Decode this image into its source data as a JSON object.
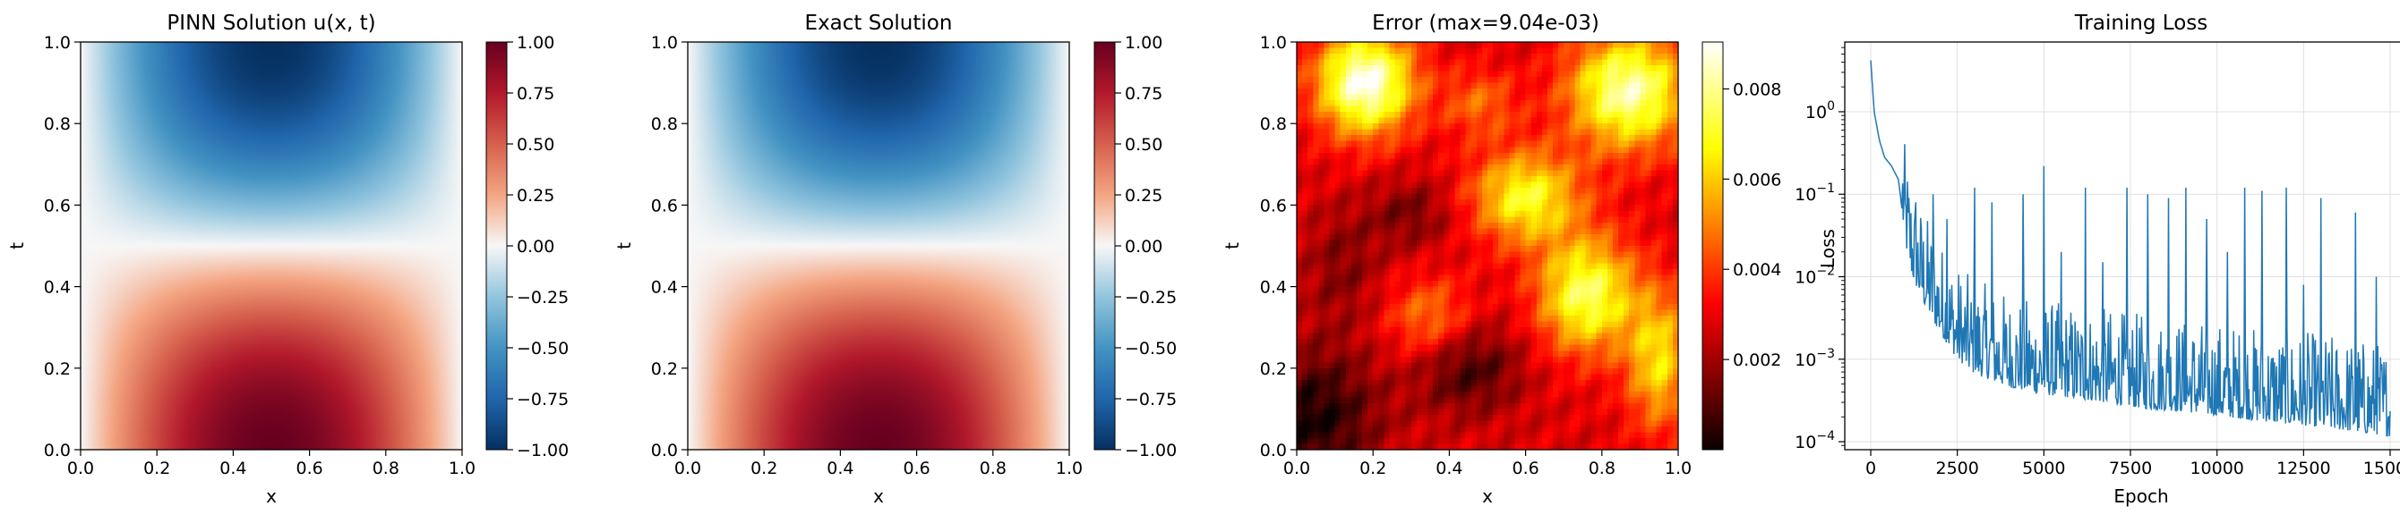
{
  "figure": {
    "colormap_diverging": "RdBu_r",
    "colormap_error": "hot"
  },
  "chart_data": [
    {
      "type": "heatmap",
      "title": "PINN Solution u(x, t)",
      "xlabel": "x",
      "ylabel": "t",
      "xlim": [
        0.0,
        1.0
      ],
      "ylim": [
        0.0,
        1.0
      ],
      "xticks": [
        "0.0",
        "0.2",
        "0.4",
        "0.6",
        "0.8",
        "1.0"
      ],
      "yticks": [
        "0.0",
        "0.2",
        "0.4",
        "0.6",
        "0.8",
        "1.0"
      ],
      "colormap": "RdBu_r",
      "clim": [
        -1.0,
        1.0
      ],
      "colorbar_ticks": [
        "1.00",
        "0.75",
        "0.50",
        "0.25",
        "0.00",
        "−0.25",
        "−0.50",
        "−0.75",
        "−1.00"
      ],
      "peak_positive": {
        "x": 0.5,
        "t": 0.0,
        "value": 1.0
      },
      "peak_negative": {
        "x": 0.5,
        "t": 1.0,
        "value": -1.0
      }
    },
    {
      "type": "heatmap",
      "title": "Exact Solution",
      "xlabel": "x",
      "ylabel": "t",
      "xlim": [
        0.0,
        1.0
      ],
      "ylim": [
        0.0,
        1.0
      ],
      "xticks": [
        "0.0",
        "0.2",
        "0.4",
        "0.6",
        "0.8",
        "1.0"
      ],
      "yticks": [
        "0.0",
        "0.2",
        "0.4",
        "0.6",
        "0.8",
        "1.0"
      ],
      "colormap": "RdBu_r",
      "clim": [
        -1.0,
        1.0
      ],
      "colorbar_ticks": [
        "1.00",
        "0.75",
        "0.50",
        "0.25",
        "0.00",
        "−0.25",
        "−0.50",
        "−0.75",
        "−1.00"
      ],
      "peak_positive": {
        "x": 0.5,
        "t": 0.0,
        "value": 1.0
      },
      "peak_negative": {
        "x": 0.5,
        "t": 1.0,
        "value": -1.0
      }
    },
    {
      "type": "heatmap",
      "title": "Error (max=9.04e-03)",
      "xlabel": "x",
      "ylabel": "t",
      "xlim": [
        0.0,
        1.0
      ],
      "ylim": [
        0.0,
        1.0
      ],
      "xticks": [
        "0.0",
        "0.2",
        "0.4",
        "0.6",
        "0.8",
        "1.0"
      ],
      "yticks": [
        "0.0",
        "0.2",
        "0.4",
        "0.6",
        "0.8",
        "1.0"
      ],
      "colormap": "hot",
      "clim": [
        0.0,
        0.00904
      ],
      "colorbar_ticks": [
        "0.008",
        "0.006",
        "0.004",
        "0.002"
      ],
      "max_error": 0.00904,
      "high_error_regions": [
        {
          "x": 0.18,
          "t": 0.9,
          "value": 0.009
        },
        {
          "x": 0.85,
          "t": 0.9,
          "value": 0.0085
        },
        {
          "x": 0.5,
          "t": 0.82,
          "value": 0.0045
        },
        {
          "x": 0.62,
          "t": 0.62,
          "value": 0.0075
        },
        {
          "x": 0.75,
          "t": 0.38,
          "value": 0.008
        },
        {
          "x": 0.35,
          "t": 0.3,
          "value": 0.0055
        }
      ],
      "low_error_regions": [
        {
          "x": 0.05,
          "t": 0.1,
          "value": 0.0002
        },
        {
          "x": 0.45,
          "t": 0.2,
          "value": 0.0006
        },
        {
          "x": 0.3,
          "t": 0.6,
          "value": 0.0012
        }
      ]
    },
    {
      "type": "line",
      "title": "Training Loss",
      "xlabel": "Epoch",
      "ylabel": "Loss",
      "yscale": "log",
      "xlim": [
        -750,
        15750
      ],
      "ylim": [
        8e-05,
        7.0
      ],
      "grid": true,
      "xticks": [
        "0",
        "2500",
        "5000",
        "7500",
        "10000",
        "12500",
        "15000"
      ],
      "yticks": [
        {
          "base": "10",
          "exp": "0"
        },
        {
          "base": "10",
          "exp": "−1"
        },
        {
          "base": "10",
          "exp": "−2"
        },
        {
          "base": "10",
          "exp": "−3"
        },
        {
          "base": "10",
          "exp": "−4"
        }
      ],
      "line_color": "#1f77b4",
      "x": [
        0,
        100,
        250,
        400,
        600,
        800,
        1000,
        1200,
        1500,
        2000,
        2500,
        3000,
        4000,
        5000,
        6000,
        7000,
        8000,
        9000,
        10000,
        11000,
        12000,
        13000,
        14000,
        15000
      ],
      "y": [
        4.2,
        1.0,
        0.45,
        0.28,
        0.22,
        0.15,
        0.03,
        0.012,
        0.006,
        0.0025,
        0.0012,
        0.0008,
        0.00055,
        0.00045,
        0.0004,
        0.00035,
        0.0003,
        0.00028,
        0.00025,
        0.00022,
        0.0002,
        0.00018,
        0.00016,
        0.00014
      ],
      "spikes": [
        {
          "x": 1300,
          "y": 0.08
        },
        {
          "x": 1800,
          "y": 0.1
        },
        {
          "x": 2200,
          "y": 0.05
        },
        {
          "x": 3000,
          "y": 0.12
        },
        {
          "x": 3500,
          "y": 0.08
        },
        {
          "x": 4400,
          "y": 0.1
        },
        {
          "x": 5000,
          "y": 0.22
        },
        {
          "x": 5500,
          "y": 0.02
        },
        {
          "x": 6200,
          "y": 0.12
        },
        {
          "x": 6700,
          "y": 0.015
        },
        {
          "x": 7400,
          "y": 0.12
        },
        {
          "x": 8000,
          "y": 0.1
        },
        {
          "x": 8600,
          "y": 0.09
        },
        {
          "x": 9100,
          "y": 0.12
        },
        {
          "x": 9700,
          "y": 0.05
        },
        {
          "x": 10300,
          "y": 0.02
        },
        {
          "x": 10800,
          "y": 0.12
        },
        {
          "x": 11300,
          "y": 0.11
        },
        {
          "x": 12000,
          "y": 0.12
        },
        {
          "x": 12500,
          "y": 0.008
        },
        {
          "x": 13000,
          "y": 0.09
        },
        {
          "x": 14000,
          "y": 0.06
        },
        {
          "x": 14600,
          "y": 0.01
        }
      ]
    }
  ]
}
